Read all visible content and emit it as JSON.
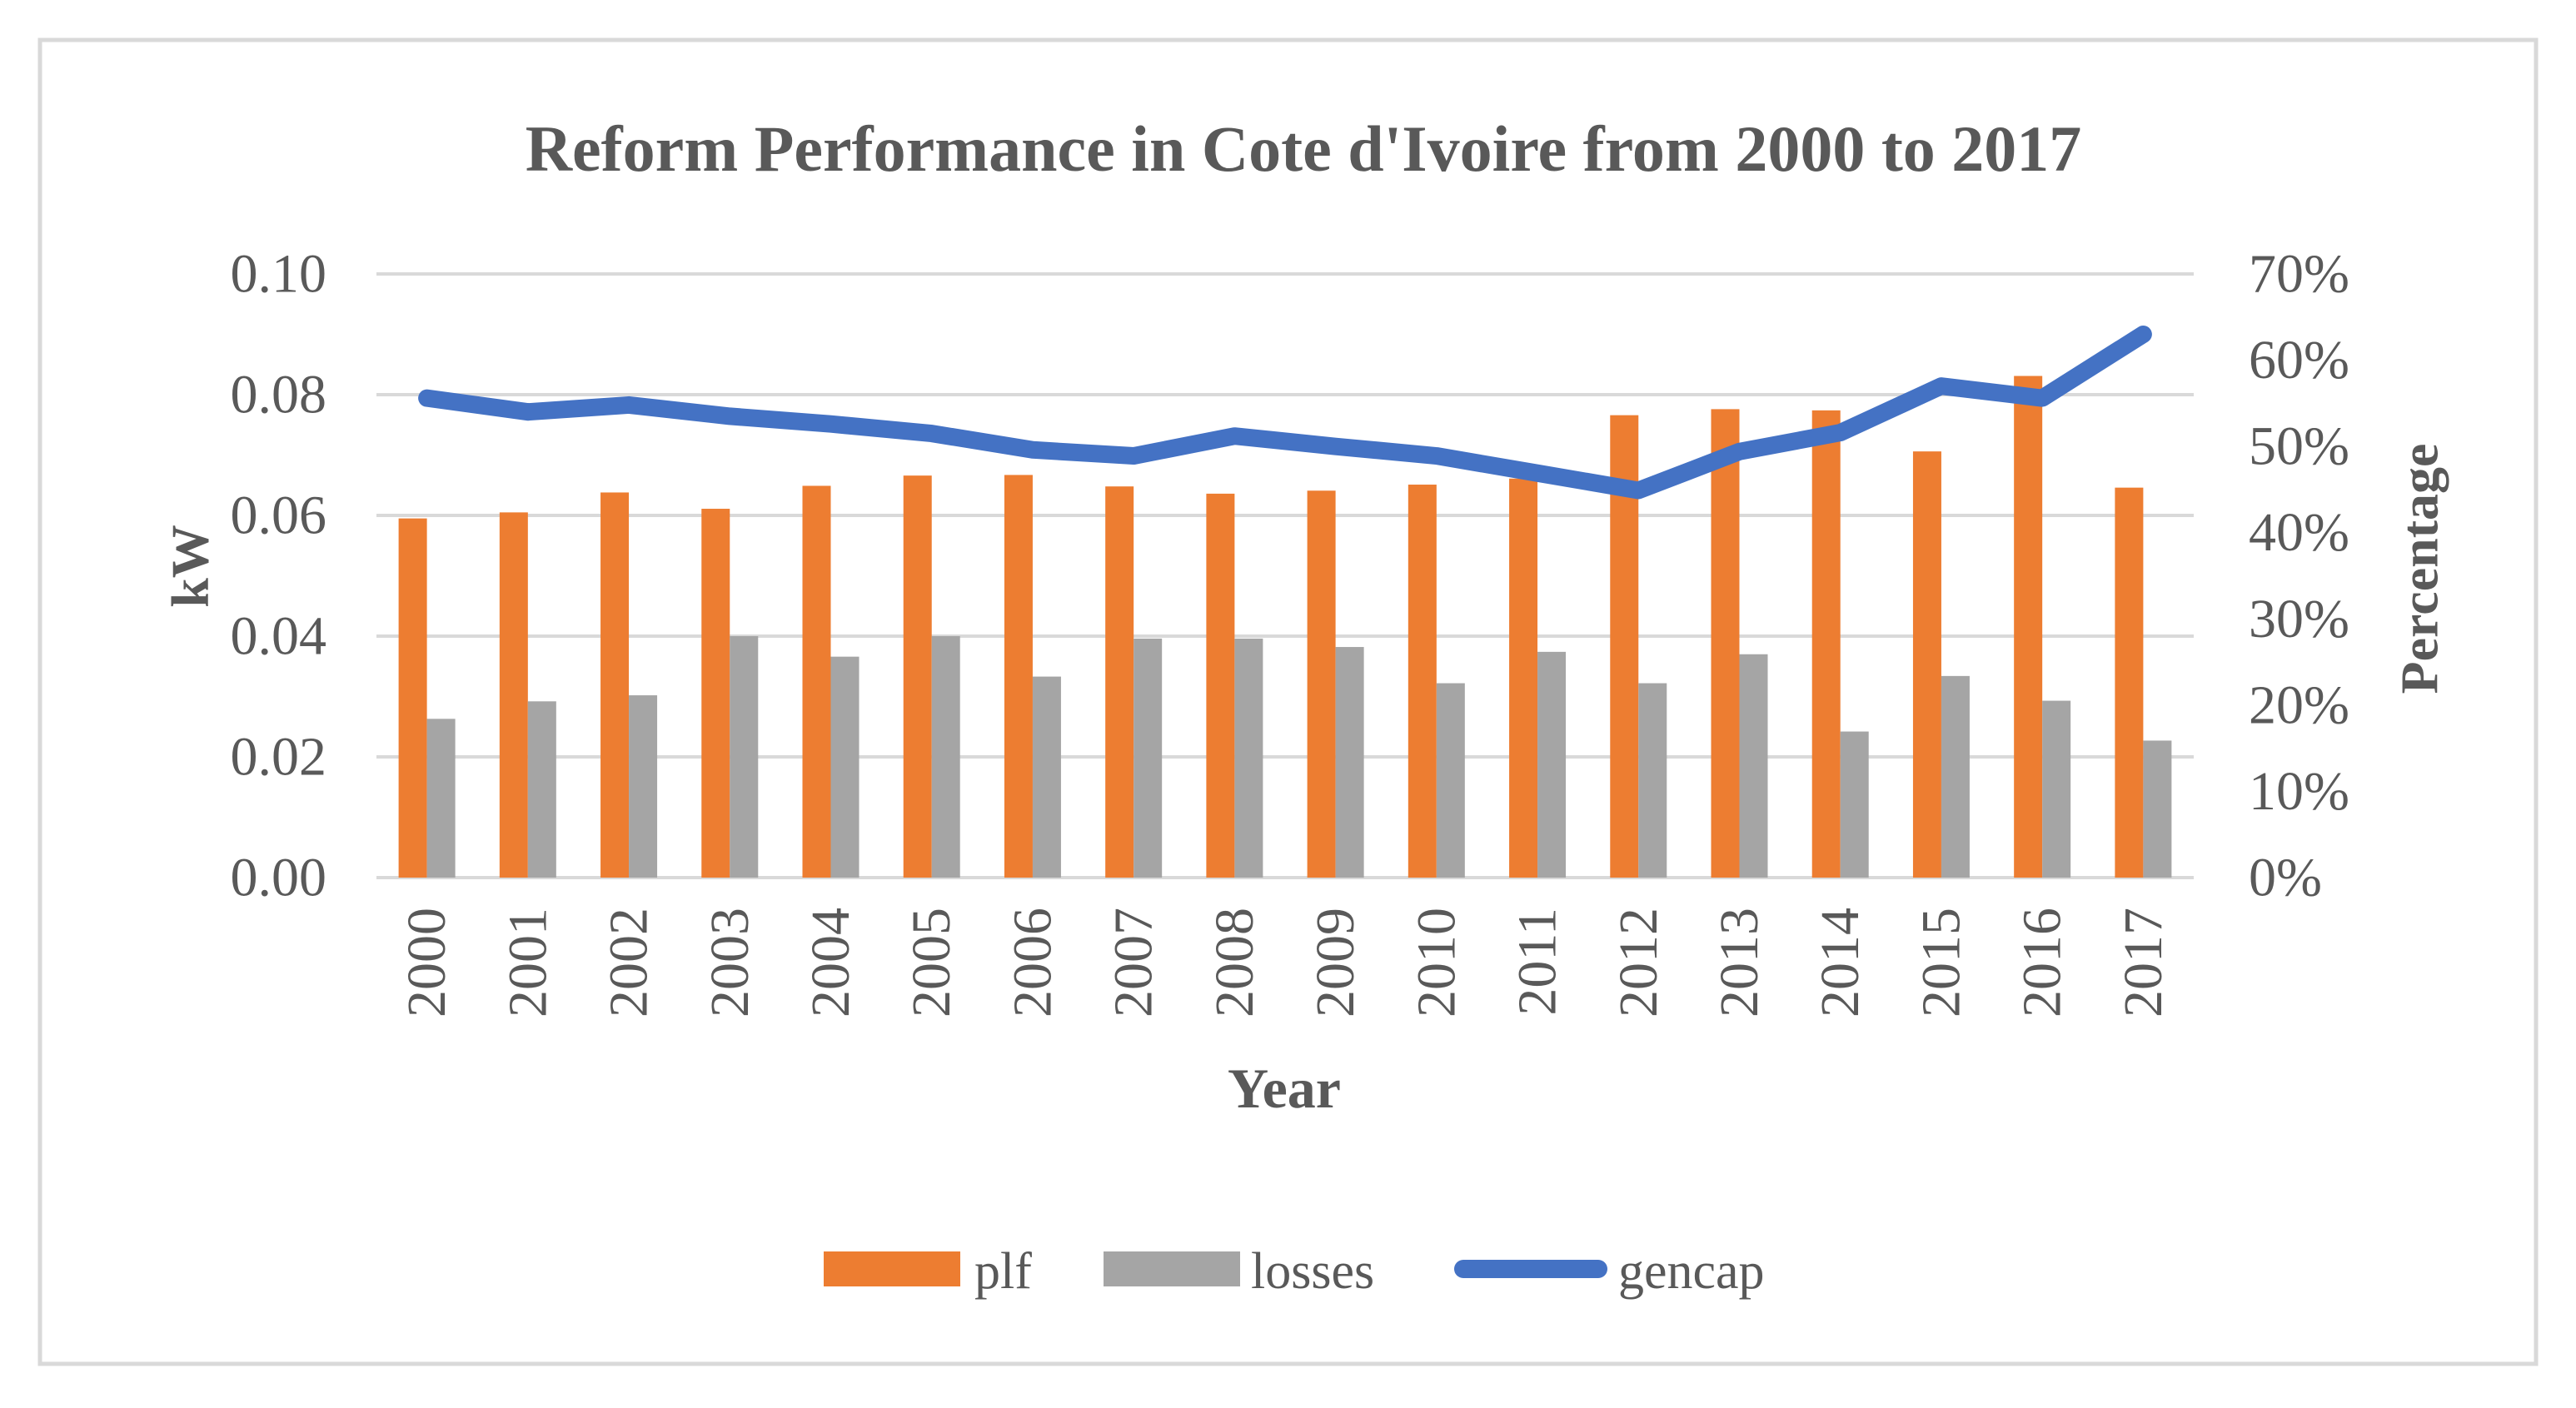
{
  "frame": {
    "background_color": "#ffffff",
    "border_color": "#d9d9d9"
  },
  "chart_data": {
    "type": "bar+line combo",
    "title": "Reform Performance in Cote d'Ivoire from 2000 to 2017",
    "xlabel": "Year",
    "ylabel_left": "kW",
    "ylabel_right": "Percentage",
    "categories": [
      "2000",
      "2001",
      "2002",
      "2003",
      "2004",
      "2005",
      "2006",
      "2007",
      "2008",
      "2009",
      "2010",
      "2011",
      "2012",
      "2013",
      "2014",
      "2015",
      "2016",
      "2017"
    ],
    "left_axis": {
      "min": 0.0,
      "max": 0.1,
      "step": 0.02,
      "tick_labels": [
        "0.00",
        "0.02",
        "0.04",
        "0.06",
        "0.08",
        "0.10"
      ]
    },
    "right_axis": {
      "min": 0,
      "max": 70,
      "step": 10,
      "tick_labels": [
        "0%",
        "10%",
        "20%",
        "30%",
        "40%",
        "50%",
        "60%",
        "70%"
      ]
    },
    "grid": "horizontal-only",
    "text_color": "#595959",
    "gridline_color": "#d9d9d9",
    "legend_position": "bottom",
    "series": [
      {
        "name": "plf",
        "type": "bar",
        "axis": "left",
        "color": "#ed7d31",
        "values": [
          0.0595,
          0.0605,
          0.0638,
          0.0611,
          0.0649,
          0.0666,
          0.0667,
          0.0648,
          0.0636,
          0.0641,
          0.0651,
          0.0661,
          0.0766,
          0.0776,
          0.0774,
          0.0706,
          0.0831,
          0.0646
        ]
      },
      {
        "name": "losses",
        "type": "bar",
        "axis": "left",
        "color": "#a5a5a5",
        "values": [
          0.0263,
          0.0292,
          0.0302,
          0.04,
          0.0366,
          0.04,
          0.0333,
          0.0396,
          0.0396,
          0.0382,
          0.0322,
          0.0374,
          0.0322,
          0.037,
          0.0242,
          0.0334,
          0.0293,
          0.0227
        ]
      },
      {
        "name": "gencap",
        "type": "line",
        "axis": "right",
        "color": "#4472c4",
        "values_percent": [
          55.6,
          54.0,
          54.8,
          53.5,
          52.6,
          51.5,
          49.6,
          48.9,
          51.2,
          50.0,
          48.9,
          46.9,
          44.9,
          49.4,
          51.6,
          57.0,
          55.6,
          63.0
        ]
      }
    ]
  }
}
